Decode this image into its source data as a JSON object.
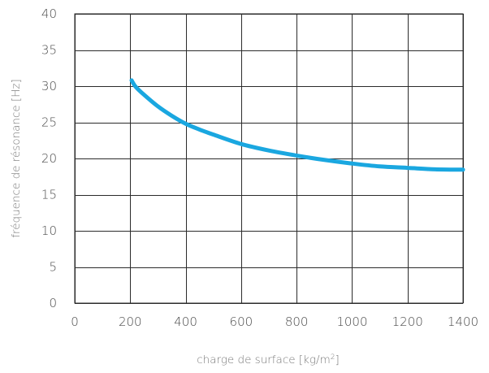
{
  "chart_data": {
    "type": "line",
    "title": "",
    "xlabel": "charge de surface [kg/m",
    "xlabel_superscript": "2",
    "xlabel_suffix": "]",
    "ylabel": "fréquence de résonance [Hz]",
    "xlim": [
      0,
      1400
    ],
    "ylim": [
      0,
      40
    ],
    "xticks": [
      0,
      200,
      400,
      600,
      800,
      1000,
      1200,
      1400
    ],
    "yticks": [
      0,
      5,
      10,
      15,
      20,
      25,
      30,
      35,
      40
    ],
    "grid": true,
    "legend": "none",
    "series": [
      {
        "color": "#1aa7e0",
        "x": [
          205,
          220,
          250,
          300,
          350,
          400,
          450,
          500,
          600,
          700,
          800,
          900,
          1000,
          1100,
          1200,
          1300,
          1400
        ],
        "y": [
          30.8,
          29.9,
          28.8,
          27.2,
          25.9,
          24.8,
          24.0,
          23.3,
          22.0,
          21.1,
          20.4,
          19.8,
          19.3,
          18.9,
          18.7,
          18.5,
          18.45
        ]
      }
    ]
  }
}
